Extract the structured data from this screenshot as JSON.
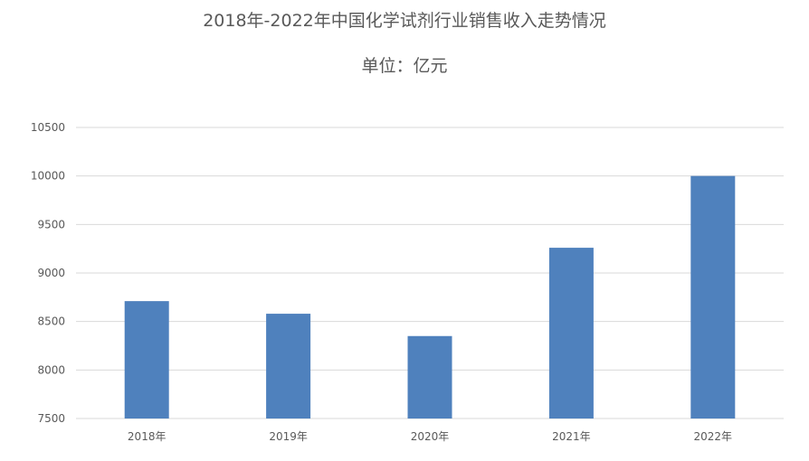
{
  "chart_data": {
    "type": "bar",
    "title": "2018年-2022年中国化学试剂行业销售收入走势情况",
    "subtitle": "单位：亿元",
    "categories": [
      "2018年",
      "2019年",
      "2020年",
      "2021年",
      "2022年"
    ],
    "values": [
      8710,
      8580,
      8350,
      9260,
      10000
    ],
    "ylim": [
      7500,
      10500
    ],
    "yticks": [
      7500,
      8000,
      8500,
      9000,
      9500,
      10000,
      10500
    ],
    "ytick_labels": [
      "7500",
      "8000",
      "8500",
      "9000",
      "9500",
      "10000",
      "10500"
    ],
    "grid": true,
    "legend": "none",
    "bar_color": "#4F81BD",
    "grid_color": "#D9D9D9"
  }
}
